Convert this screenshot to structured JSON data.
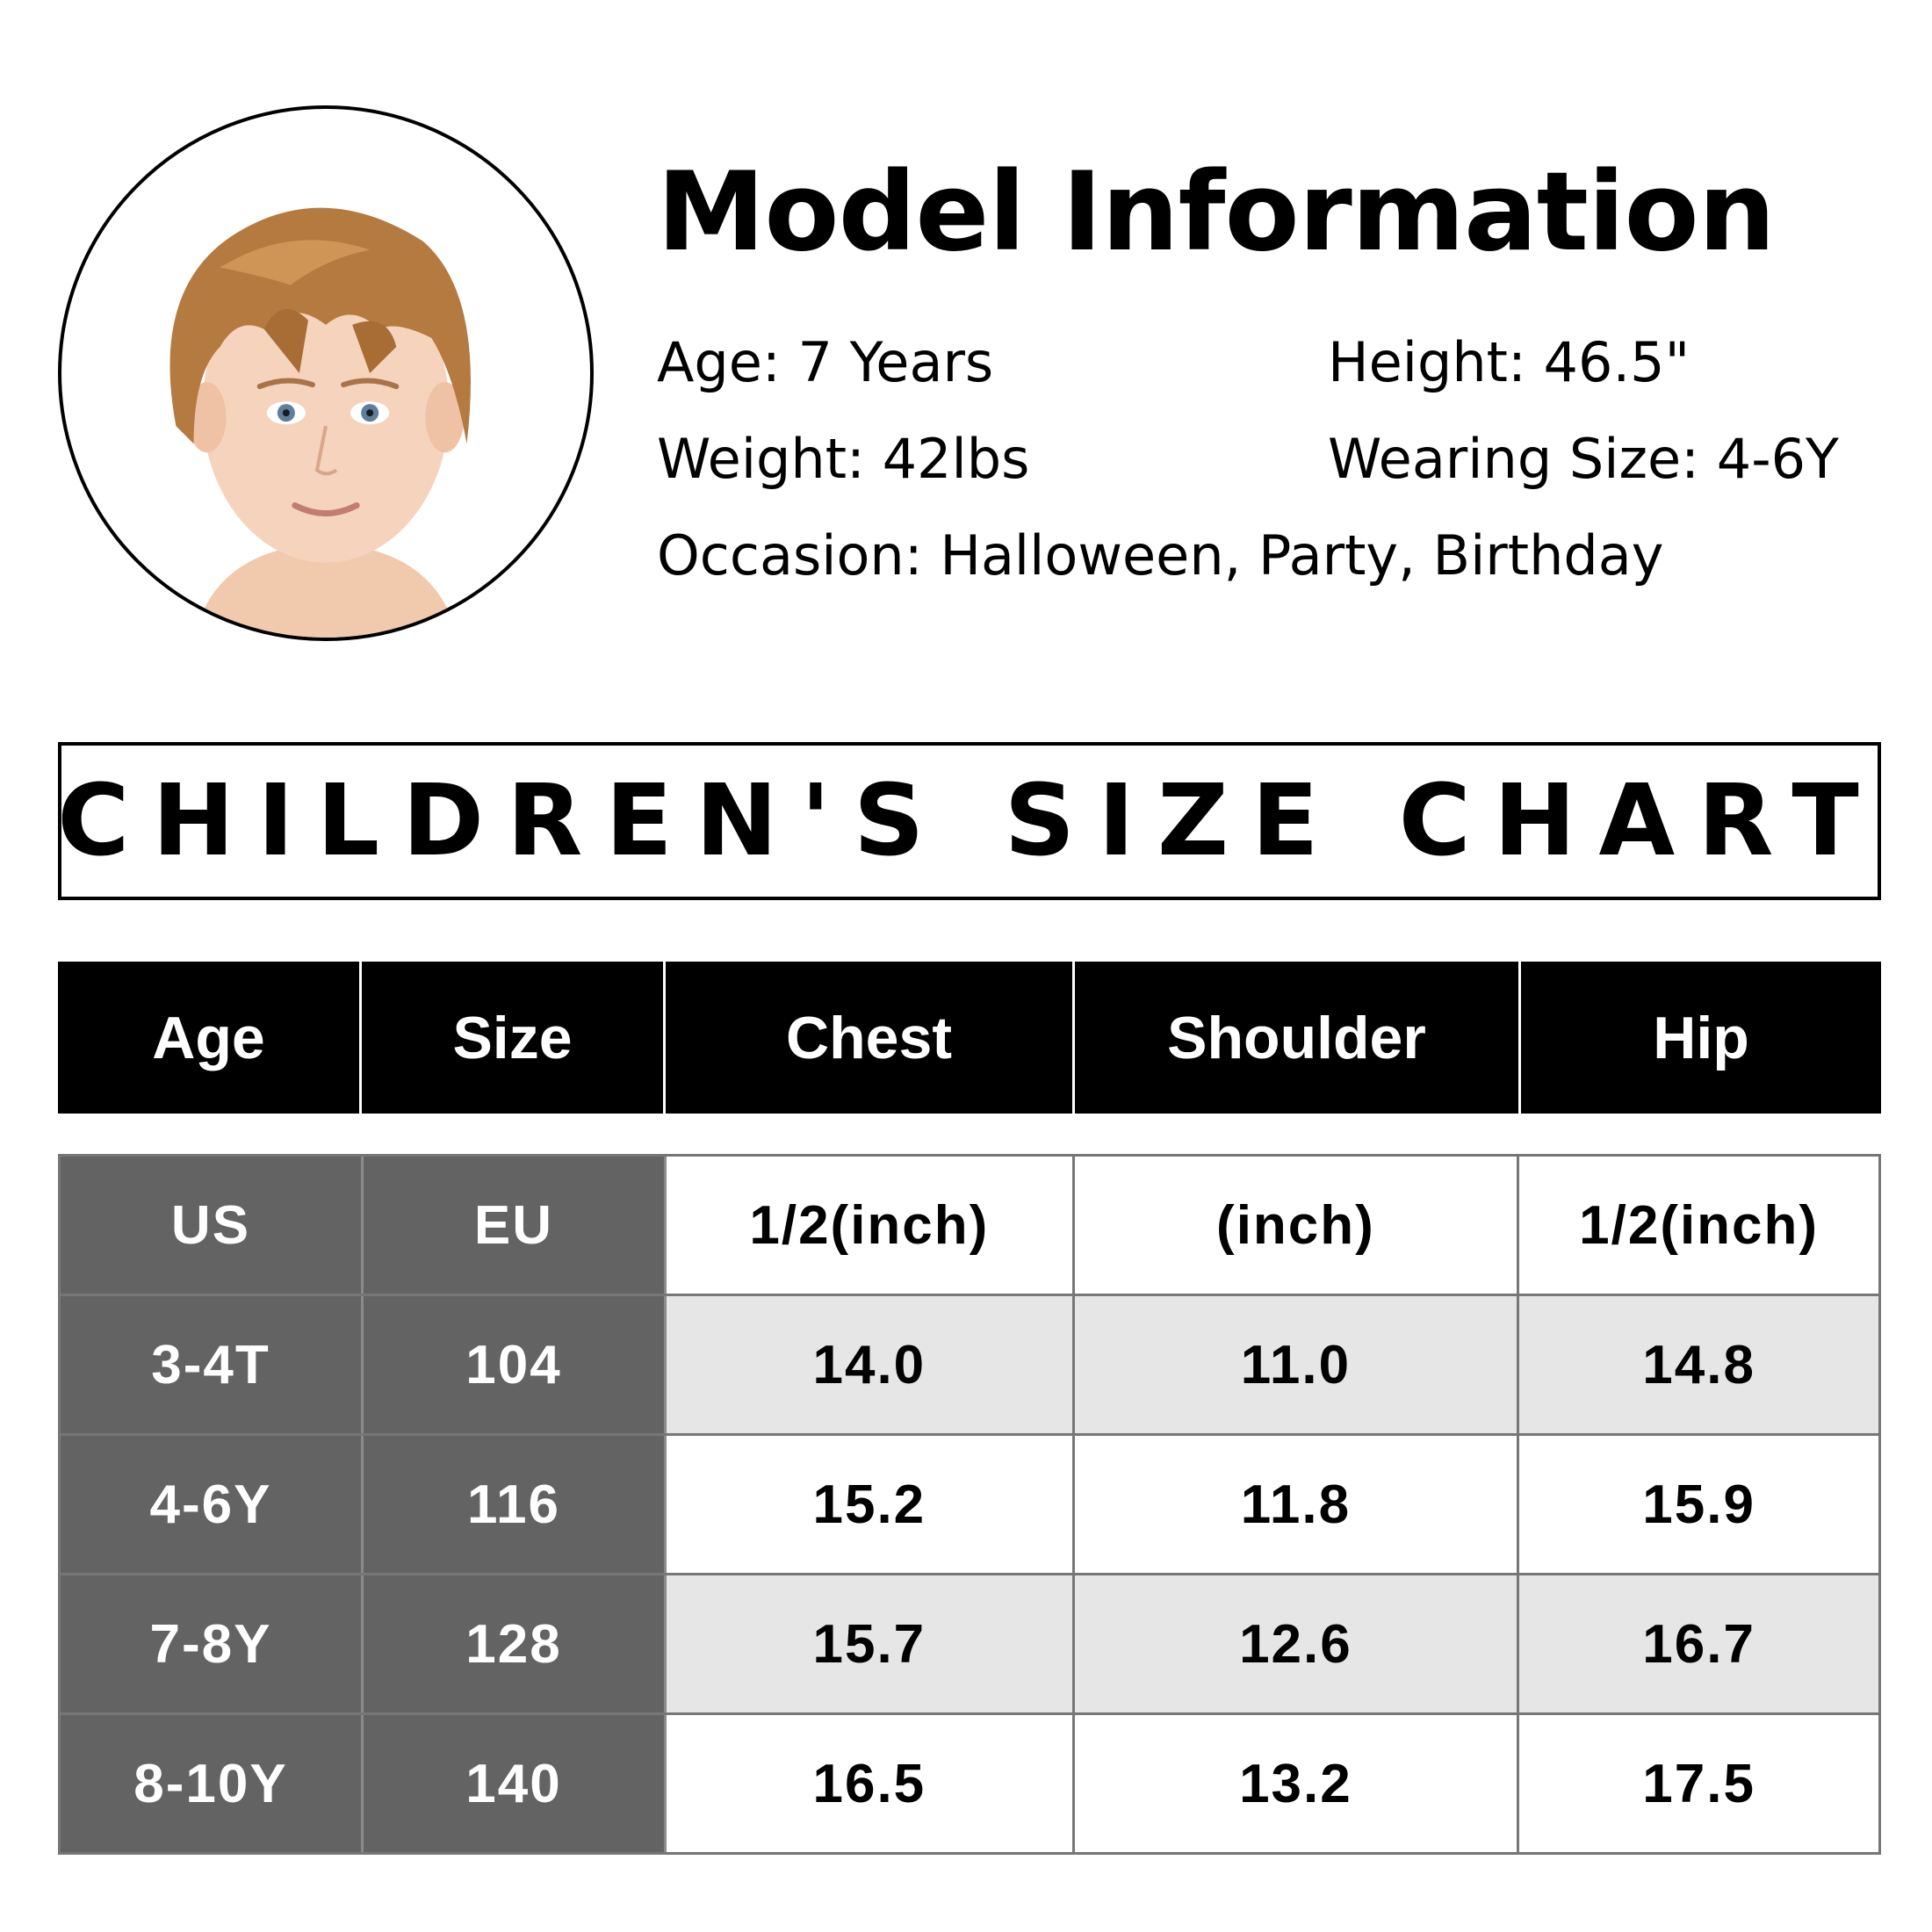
{
  "model_info": {
    "title": "Model Information",
    "age": "Age: 7 Years",
    "height": "Height: 46.5\"",
    "weight": "Weight: 42lbs",
    "wearing_size": "Wearing Size: 4-6Y",
    "occasion": "Occasion: Halloween, Party, Birthday"
  },
  "chart_title": "CHILDREN'S SIZE CHART",
  "table": {
    "headers": [
      "Age",
      "Size",
      "Chest",
      "Shoulder",
      "Hip"
    ],
    "units": [
      "US",
      "EU",
      "1/2(inch)",
      "(inch)",
      "1/2(inch)"
    ],
    "rows": [
      [
        "3-4T",
        "104",
        "14.0",
        "11.0",
        "14.8"
      ],
      [
        "4-6Y",
        "116",
        "15.2",
        "11.8",
        "15.9"
      ],
      [
        "7-8Y",
        "128",
        "15.7",
        "12.6",
        "16.7"
      ],
      [
        "8-10Y",
        "140",
        "16.5",
        "13.2",
        "17.5"
      ]
    ]
  },
  "colors": {
    "header_bg": "#000000",
    "label_col_bg": "#636363",
    "alt_row_bg": "#e6e6e6",
    "grid": "#777777"
  }
}
